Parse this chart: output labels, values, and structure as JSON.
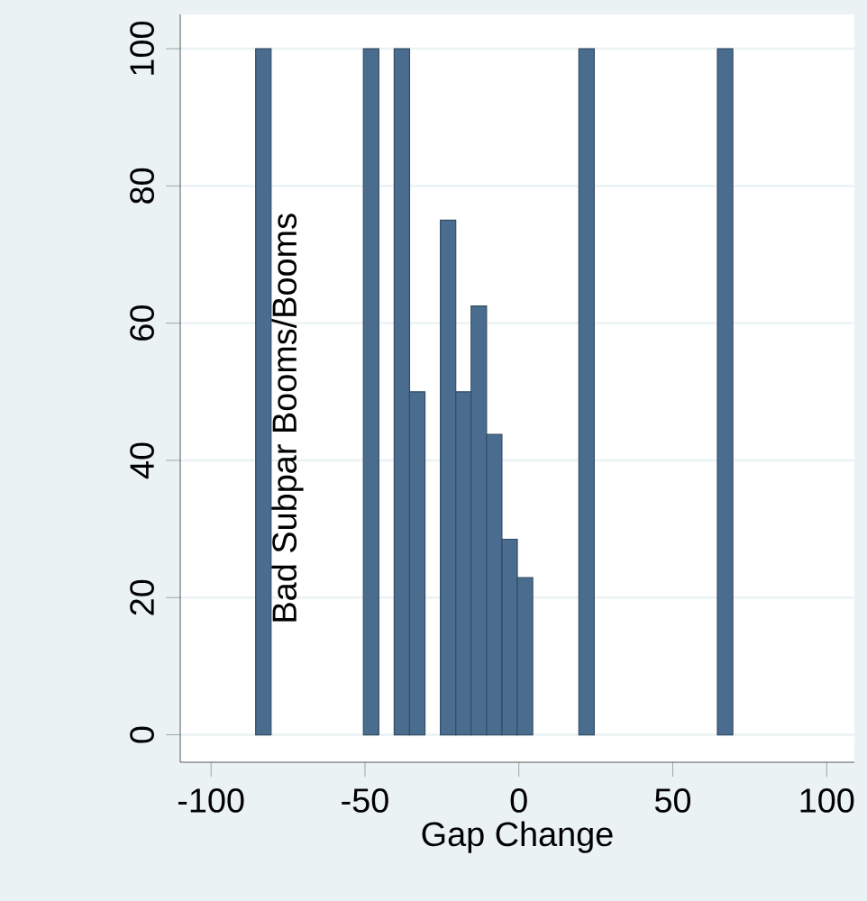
{
  "chart_data": {
    "type": "bar",
    "x": [
      -83,
      -48,
      -38,
      -33,
      -23,
      -18,
      -13,
      -8,
      -3,
      2,
      22,
      67
    ],
    "values": [
      100,
      100,
      100,
      50,
      75,
      50,
      62.5,
      43.8,
      28.5,
      22.9,
      100,
      100
    ],
    "color": "#4a6d8f",
    "xlabel": "Gap Change",
    "ylabel": "Bad Subpar Booms/Booms",
    "xlim": [
      -110,
      109
    ],
    "ylim": [
      -4,
      105
    ],
    "xticks": [
      -100,
      -50,
      0,
      50,
      100
    ],
    "yticks": [
      0,
      20,
      40,
      60,
      80,
      100
    ],
    "grid": "y"
  }
}
